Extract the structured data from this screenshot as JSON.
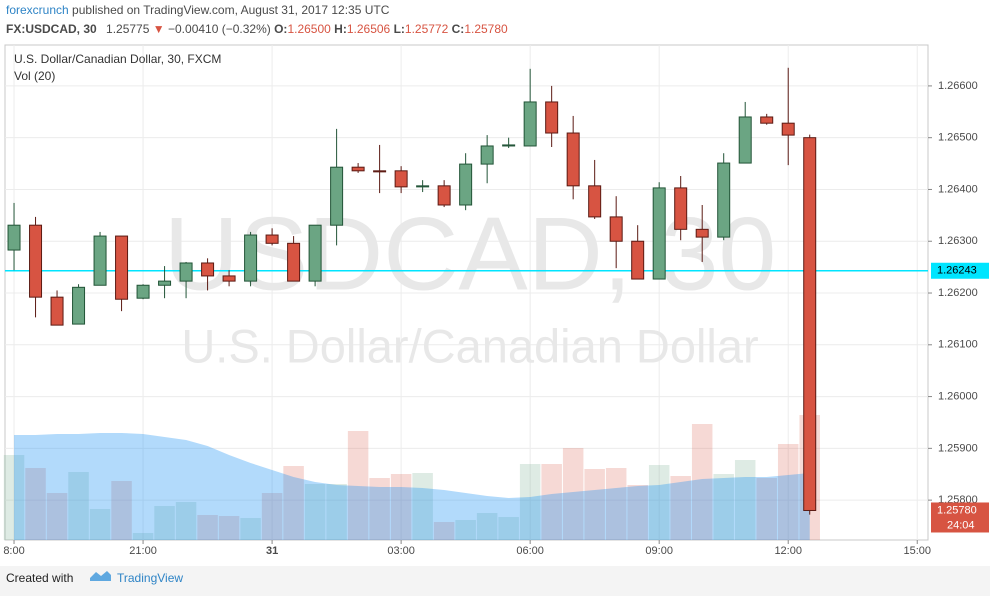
{
  "header": {
    "author": "forexcrunch",
    "published": "published on TradingView.com, August 31, 2017 12:35 UTC",
    "symbol": "FX:USDCAD, 30",
    "last": "1.25775",
    "arrow": "▼",
    "change": "−0.00410 (−0.32%)",
    "o": "O:",
    "h": "H:",
    "l": "L:",
    "c": "C:",
    "ohlc_labels": {
      "open": "1.26500",
      "high": "1.26506",
      "low": "1.25772",
      "close": "1.25780"
    }
  },
  "chart_data": {
    "type": "candlestick",
    "title": "U.S. Dollar/Canadian Dollar, 30, FXCM",
    "volume_label": "Vol (20)",
    "watermark": "USDCAD, 30",
    "watermark_sub": "U.S. Dollar/Canadian Dollar",
    "countdown": "24:04",
    "up_color": "#6ba583",
    "down_color": "#d75442",
    "volume_ma_color": "#2196f3",
    "line_color": "#00e5ff",
    "open": [
      1.26283,
      1.26331,
      1.26192,
      1.2614,
      1.26215,
      1.2631,
      1.2619,
      1.26215,
      1.26223,
      1.26258,
      1.26233,
      1.26223,
      1.26312,
      1.26296,
      1.26223,
      1.26331,
      1.26443,
      1.26436,
      1.26436,
      1.26405,
      1.26407,
      1.2637,
      1.26449,
      1.26484,
      1.26484,
      1.26569,
      1.26509,
      1.26407,
      1.26347,
      1.263,
      1.26227,
      1.26403,
      1.26323,
      1.26308,
      1.26451,
      1.2654,
      1.26528,
      1.265
    ],
    "high": [
      1.26374,
      1.26347,
      1.26205,
      1.26217,
      1.26318,
      1.2631,
      1.26217,
      1.26252,
      1.2626,
      1.26267,
      1.26244,
      1.26318,
      1.26325,
      1.2631,
      1.26331,
      1.26517,
      1.26451,
      1.26486,
      1.26445,
      1.26418,
      1.26418,
      1.2647,
      1.26505,
      1.265,
      1.26633,
      1.266,
      1.26542,
      1.26457,
      1.26387,
      1.26331,
      1.26414,
      1.26426,
      1.2637,
      1.2647,
      1.26569,
      1.26546,
      1.26635,
      1.26506
    ],
    "low": [
      1.26244,
      1.26153,
      1.26138,
      1.2614,
      1.26215,
      1.26165,
      1.26188,
      1.2619,
      1.2619,
      1.26205,
      1.26213,
      1.26213,
      1.26292,
      1.26223,
      1.26213,
      1.26292,
      1.26432,
      1.26393,
      1.26393,
      1.26395,
      1.26366,
      1.2636,
      1.26412,
      1.2648,
      1.26484,
      1.26482,
      1.26381,
      1.26343,
      1.26248,
      1.26227,
      1.26227,
      1.26302,
      1.2626,
      1.26302,
      1.26451,
      1.26525,
      1.26447,
      1.25772
    ],
    "close": [
      1.26331,
      1.26192,
      1.26138,
      1.26211,
      1.2631,
      1.26188,
      1.26215,
      1.26223,
      1.26258,
      1.26233,
      1.26223,
      1.26312,
      1.26296,
      1.26223,
      1.26331,
      1.26443,
      1.26436,
      1.26434,
      1.26405,
      1.26407,
      1.2637,
      1.26449,
      1.26484,
      1.26486,
      1.26569,
      1.26509,
      1.26407,
      1.26347,
      1.263,
      1.26227,
      1.26403,
      1.26323,
      1.26308,
      1.26451,
      1.2654,
      1.26528,
      1.26505,
      1.2578
    ],
    "volume": [
      85,
      72,
      47,
      68,
      31,
      59,
      7,
      34,
      38,
      25,
      24,
      22,
      47,
      74,
      56,
      56,
      109,
      62,
      66,
      67,
      18,
      20,
      27,
      23,
      76,
      76,
      92,
      71,
      72,
      55,
      75,
      64,
      116,
      66,
      80,
      62,
      96,
      125
    ],
    "volume_ma": [
      105,
      105,
      106,
      106,
      107,
      107,
      106,
      103,
      100,
      94,
      85,
      77,
      70,
      63,
      58,
      55,
      54,
      53,
      53,
      52,
      50,
      47,
      44,
      42,
      43,
      46,
      48,
      50,
      52,
      54,
      55,
      58,
      61,
      62,
      63,
      63,
      65,
      67
    ],
    "hline": {
      "value": 1.26243,
      "label": "1.26243"
    },
    "xlim": [
      -0.42,
      42.5
    ],
    "ylim": [
      1.25723,
      1.26679
    ],
    "xticks": [
      {
        "value": 0,
        "label": "8:00"
      },
      {
        "value": 6,
        "label": "21:00"
      },
      {
        "value": 12,
        "label": "31"
      },
      {
        "value": 18,
        "label": "03:00"
      },
      {
        "value": 24,
        "label": "06:00"
      },
      {
        "value": 30,
        "label": "09:00"
      },
      {
        "value": 36,
        "label": "12:00"
      },
      {
        "value": 42,
        "label": "15:00"
      }
    ],
    "yticks": [
      {
        "value": 1.258,
        "label": "1.25800"
      },
      {
        "value": 1.259,
        "label": "1.25900"
      },
      {
        "value": 1.26,
        "label": "1.26000"
      },
      {
        "value": 1.261,
        "label": "1.26100"
      },
      {
        "value": 1.262,
        "label": "1.26200"
      },
      {
        "value": 1.263,
        "label": "1.26300"
      },
      {
        "value": 1.264,
        "label": "1.26400"
      },
      {
        "value": 1.265,
        "label": "1.26500"
      },
      {
        "value": 1.266,
        "label": "1.26600"
      }
    ],
    "grid": true
  },
  "footer": {
    "created": "Created with",
    "brand": "TradingView"
  }
}
